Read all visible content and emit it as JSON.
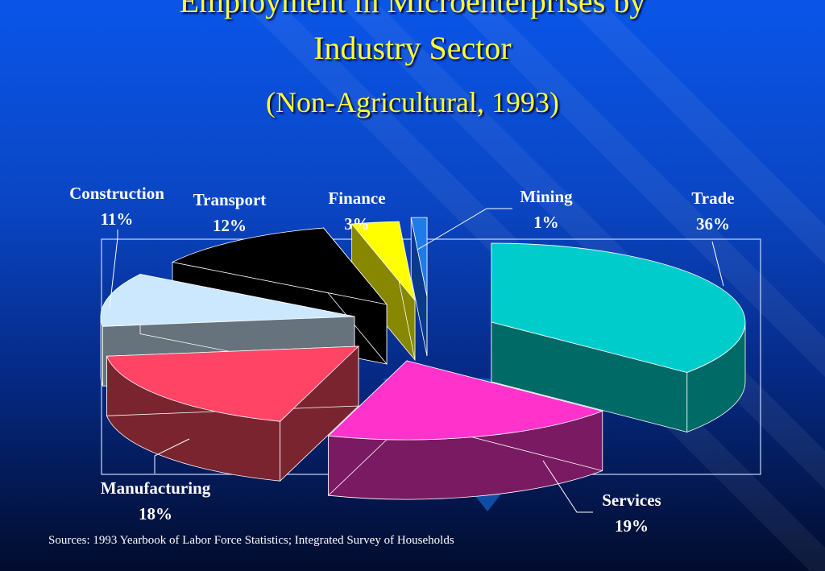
{
  "title": {
    "line1": "Employment in Microenterprises by",
    "line2": "Industry Sector",
    "subtitle": "(Non-Agricultural, 1993)"
  },
  "source": "Sources:  1993 Yearbook of Labor Force Statistics; Integrated Survey of Households",
  "colors": {
    "background_top": "#0a55e8",
    "background_bottom": "#020c2c",
    "title": "#ffff33",
    "label": "#ffffff"
  },
  "chart_data": {
    "type": "pie",
    "style": "3d exploded",
    "title": "Employment in Microenterprises by Industry Sector",
    "subtitle": "(Non-Agricultural, 1993)",
    "slices": [
      {
        "name": "Trade",
        "value": 36,
        "label": "36%",
        "top_color": "#00cccc",
        "side_color": "#006a66"
      },
      {
        "name": "Services",
        "value": 19,
        "label": "19%",
        "top_color": "#ff33cc",
        "side_color": "#7a1a62"
      },
      {
        "name": "Manufacturing",
        "value": 18,
        "label": "18%",
        "top_color": "#ff4466",
        "side_color": "#7a2430"
      },
      {
        "name": "Construction",
        "value": 11,
        "label": "11%",
        "top_color": "#cce8ff",
        "side_color": "#66737c"
      },
      {
        "name": "Transport",
        "value": 12,
        "label": "12%",
        "top_color": "#000000",
        "side_color": "#000000"
      },
      {
        "name": "Finance",
        "value": 3,
        "label": "3%",
        "top_color": "#ffff00",
        "side_color": "#878700"
      },
      {
        "name": "Mining",
        "value": 1,
        "label": "1%",
        "top_color": "#1e7be8",
        "side_color": "#0a3a8a"
      }
    ]
  }
}
